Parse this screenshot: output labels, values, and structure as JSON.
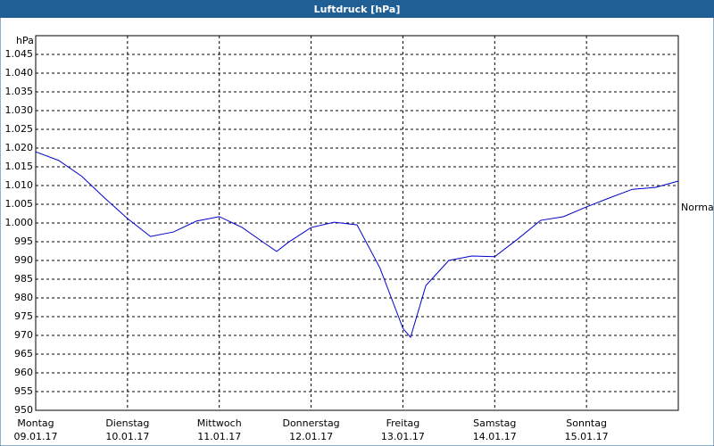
{
  "chart_data": {
    "type": "line",
    "title": "Luftdruck [hPa]",
    "y_label": "hPa",
    "x": [
      0,
      6,
      12,
      18,
      24,
      30,
      36,
      42,
      48,
      54,
      60,
      63,
      66,
      72,
      78,
      84,
      90,
      96,
      98,
      102,
      108,
      114,
      120,
      126,
      132,
      138,
      144,
      150,
      156,
      162,
      168
    ],
    "series": [
      {
        "name": "Luftdruck",
        "color": "#0000cc",
        "values": [
          1019,
          1016.7,
          1012.5,
          1006.7,
          1001.2,
          996.4,
          997.6,
          1000.5,
          1001.7,
          998.8,
          994.5,
          992.4,
          994.8,
          998.8,
          1000.2,
          999.5,
          988,
          971.9,
          969.5,
          983.3,
          990,
          991.2,
          991,
          995.7,
          1000.7,
          1001.7,
          1004.3,
          1006.7,
          1009,
          1009.5,
          1011.2
        ]
      }
    ],
    "xlim": [
      0,
      168
    ],
    "xticks": [
      {
        "value": 0,
        "label": "Montag",
        "date": "09.01.17"
      },
      {
        "value": 24,
        "label": "Dienstag",
        "date": "10.01.17"
      },
      {
        "value": 48,
        "label": "Mittwoch",
        "date": "11.01.17"
      },
      {
        "value": 72,
        "label": "Donnerstag",
        "date": "12.01.17"
      },
      {
        "value": 96,
        "label": "Freitag",
        "date": "13.01.17"
      },
      {
        "value": 120,
        "label": "Samstag",
        "date": "14.01.17"
      },
      {
        "value": 144,
        "label": "Sonntag",
        "date": "15.01.17"
      }
    ],
    "ylim": [
      950,
      1050
    ],
    "yticks": [
      950,
      955,
      960,
      965,
      970,
      975,
      980,
      985,
      990,
      995,
      {
        "value": 1000,
        "label": "1.000"
      },
      {
        "value": 1005,
        "label": "1.005"
      },
      {
        "value": 1010,
        "label": "1.010"
      },
      {
        "value": 1015,
        "label": "1.015"
      },
      {
        "value": 1020,
        "label": "1.020"
      },
      {
        "value": 1025,
        "label": "1.025"
      },
      {
        "value": 1030,
        "label": "1.030"
      },
      {
        "value": 1035,
        "label": "1.035"
      },
      {
        "value": 1040,
        "label": "1.040"
      },
      {
        "value": 1045,
        "label": "1.045"
      }
    ],
    "grid": true,
    "annotation": {
      "text": "Normal",
      "value": 1004
    }
  }
}
